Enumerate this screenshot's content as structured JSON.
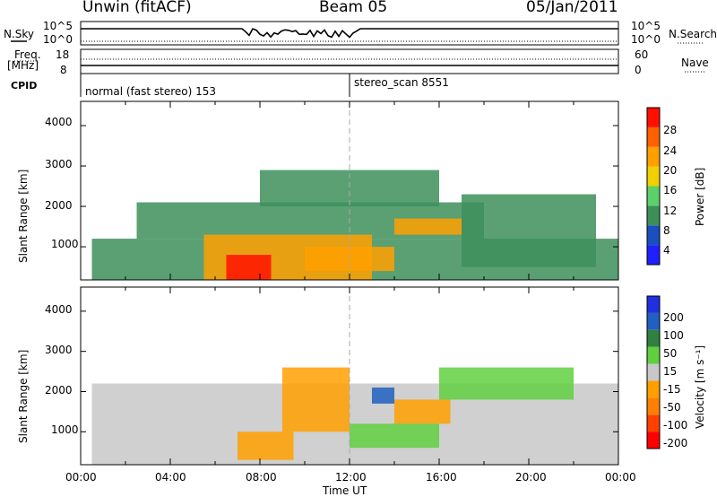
{
  "header": {
    "station": "Unwin (fitACF)",
    "beam": "Beam 05",
    "date": "05/Jan/2011"
  },
  "status_panels": {
    "nsky_label": "N.Sky",
    "nsky_ticks": [
      "10^5",
      "10^0"
    ],
    "nsearch_label": "N.Search",
    "freq_label_line1": "Freq.",
    "freq_label_line2": "[MHz]",
    "freq_ticks": [
      "18",
      "8"
    ],
    "nave_label": "Nave",
    "nave_ticks": [
      "60",
      "0"
    ],
    "cpid_label": "CPID",
    "cpid_modes": [
      "normal (fast stereo) 153",
      "stereo_scan 8551"
    ]
  },
  "x_axis": {
    "title": "Time UT",
    "ticks": [
      "00:00",
      "04:00",
      "08:00",
      "12:00",
      "16:00",
      "20:00",
      "00:00"
    ]
  },
  "power_panel": {
    "ylabel": "Slant Range [km]",
    "yticks": [
      "4000",
      "3000",
      "2000",
      "1000"
    ],
    "colorbar_label": "Power [dB]",
    "colorbar_ticks": [
      "28",
      "24",
      "20",
      "16",
      "12",
      "8",
      "4"
    ]
  },
  "velocity_panel": {
    "ylabel": "Slant Range [km]",
    "yticks": [
      "4000",
      "3000",
      "2000",
      "1000"
    ],
    "colorbar_label": "Velocity [m s⁻¹]",
    "colorbar_ticks": [
      "200",
      "100",
      "50",
      "15",
      "-15",
      "-50",
      "-100",
      "-200"
    ]
  },
  "chart_data": [
    {
      "type": "heatmap",
      "title": "Power",
      "x_range_hours": [
        0,
        24
      ],
      "ylim": [
        180,
        4600
      ],
      "colorscale": {
        "levels_dB": [
          0,
          4,
          8,
          12,
          16,
          20,
          24,
          28,
          32
        ],
        "colors": [
          "#1f1fff",
          "#1a4fc0",
          "#3d8f5a",
          "#5cd06a",
          "#f0d000",
          "#ffa000",
          "#ff6000",
          "#ff1000"
        ]
      },
      "regions": [
        {
          "t0": 0.5,
          "t1": 24,
          "r0": 180,
          "r1": 1200,
          "level": 8
        },
        {
          "t0": 2.5,
          "t1": 18,
          "r0": 1200,
          "r1": 2100,
          "level": 10
        },
        {
          "t0": 5.5,
          "t1": 13,
          "r0": 180,
          "r1": 1300,
          "level": 20
        },
        {
          "t0": 6.5,
          "t1": 8.5,
          "r0": 180,
          "r1": 800,
          "level": 28
        },
        {
          "t0": 10,
          "t1": 14,
          "r0": 400,
          "r1": 1000,
          "level": 22
        },
        {
          "t0": 14,
          "t1": 17,
          "r0": 1300,
          "r1": 1700,
          "level": 22
        },
        {
          "t0": 8,
          "t1": 16,
          "r0": 2000,
          "r1": 2900,
          "level": 8
        },
        {
          "t0": 17,
          "t1": 23,
          "r0": 500,
          "r1": 2300,
          "level": 10
        }
      ]
    },
    {
      "type": "heatmap",
      "title": "Velocity",
      "x_range_hours": [
        0,
        24
      ],
      "ylim": [
        180,
        4600
      ],
      "colorscale": {
        "levels_ms": [
          -250,
          -200,
          -100,
          -50,
          -15,
          15,
          50,
          100,
          200,
          250
        ],
        "colors": [
          "#ff0000",
          "#ff4000",
          "#ff8000",
          "#ffa000",
          "#c8c8c8",
          "#60d040",
          "#308040",
          "#2060c0",
          "#2030e0"
        ]
      },
      "regions": [
        {
          "t0": 0.5,
          "t1": 24,
          "r0": 180,
          "r1": 2200,
          "value": 0
        },
        {
          "t0": 7,
          "t1": 9.5,
          "r0": 300,
          "r1": 1000,
          "value": -40
        },
        {
          "t0": 9,
          "t1": 12,
          "r0": 1000,
          "r1": 2600,
          "value": -50
        },
        {
          "t0": 14,
          "t1": 16.5,
          "r0": 1200,
          "r1": 1800,
          "value": -40
        },
        {
          "t0": 12,
          "t1": 16,
          "r0": 600,
          "r1": 1200,
          "value": 30
        },
        {
          "t0": 13,
          "t1": 14,
          "r0": 1700,
          "r1": 2100,
          "value": 150
        },
        {
          "t0": 16,
          "t1": 22,
          "r0": 1800,
          "r1": 2600,
          "value": 30
        }
      ]
    }
  ]
}
